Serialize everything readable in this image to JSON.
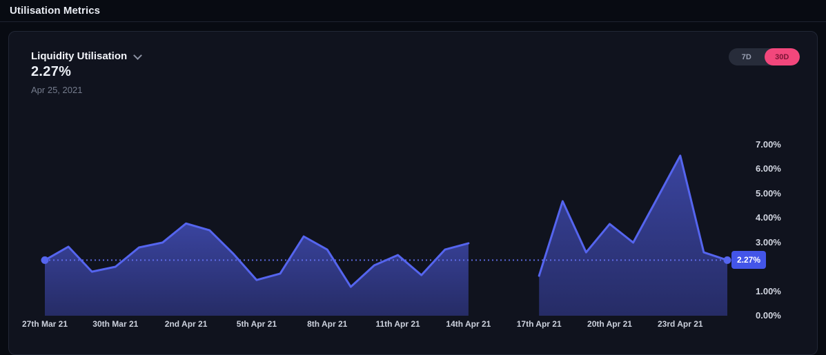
{
  "page": {
    "title": "Utilisation Metrics"
  },
  "card": {
    "metric_title": "Liquidity Utilisation",
    "current_value": "2.27%",
    "current_date": "Apr 25, 2021",
    "range_toggle": {
      "options": [
        {
          "label": "7D",
          "active": false
        },
        {
          "label": "30D",
          "active": true
        }
      ],
      "selected": "30D"
    }
  },
  "chart_data": {
    "type": "area",
    "title": "Liquidity Utilisation",
    "unit": "%",
    "grid": false,
    "legend": false,
    "y_axis": {
      "min": 0,
      "max": 7,
      "side": "right"
    },
    "y_ticks": [
      {
        "value": 7,
        "label": "7.00%"
      },
      {
        "value": 6,
        "label": "6.00%"
      },
      {
        "value": 5,
        "label": "5.00%"
      },
      {
        "value": 4,
        "label": "4.00%"
      },
      {
        "value": 3,
        "label": "3.00%"
      },
      {
        "value": 1,
        "label": "1.00%"
      },
      {
        "value": 0,
        "label": "0.00%"
      }
    ],
    "reference": {
      "value": 2.27,
      "label": "2.27%",
      "date": "Apr 25, 2021"
    },
    "dates": [
      "27 Mar 21",
      "28 Mar 21",
      "29 Mar 21",
      "30 Mar 21",
      "31 Mar 21",
      "1 Apr 21",
      "2 Apr 21",
      "3 Apr 21",
      "4 Apr 21",
      "5 Apr 21",
      "6 Apr 21",
      "7 Apr 21",
      "8 Apr 21",
      "9 Apr 21",
      "10 Apr 21",
      "11 Apr 21",
      "12 Apr 21",
      "13 Apr 21",
      "14 Apr 21",
      "15 Apr 21",
      "16 Apr 21",
      "17 Apr 21",
      "18 Apr 21",
      "19 Apr 21",
      "20 Apr 21",
      "21 Apr 21",
      "22 Apr 21",
      "23 Apr 21",
      "24 Apr 21",
      "25 Apr 21"
    ],
    "values": [
      2.27,
      2.82,
      1.8,
      2.0,
      2.79,
      2.99,
      3.77,
      3.49,
      2.54,
      1.46,
      1.72,
      3.24,
      2.7,
      1.18,
      2.06,
      2.48,
      1.66,
      2.7,
      2.96,
      null,
      null,
      1.63,
      4.68,
      2.59,
      3.75,
      2.99,
      4.76,
      6.54,
      2.59,
      2.27
    ],
    "x_ticks": [
      {
        "index": 0,
        "label": "27th Mar 21"
      },
      {
        "index": 3,
        "label": "30th Mar 21"
      },
      {
        "index": 6,
        "label": "2nd Apr 21"
      },
      {
        "index": 9,
        "label": "5th Apr 21"
      },
      {
        "index": 12,
        "label": "8th Apr 21"
      },
      {
        "index": 15,
        "label": "11th Apr 21"
      },
      {
        "index": 18,
        "label": "14th Apr 21"
      },
      {
        "index": 21,
        "label": "17th Apr 21"
      },
      {
        "index": 24,
        "label": "20th Apr 21"
      },
      {
        "index": 27,
        "label": "23rd Apr 21"
      }
    ],
    "colors": {
      "line": "#5565ef",
      "fill_top": "#3a449f",
      "fill_bottom": "#262c66",
      "reference_line": "#6673f2",
      "badge_bg": "#4355e8",
      "badge_text": "#ffffff",
      "axis_text": "#ccd1dd",
      "accent_pink": "#f2477c"
    }
  }
}
